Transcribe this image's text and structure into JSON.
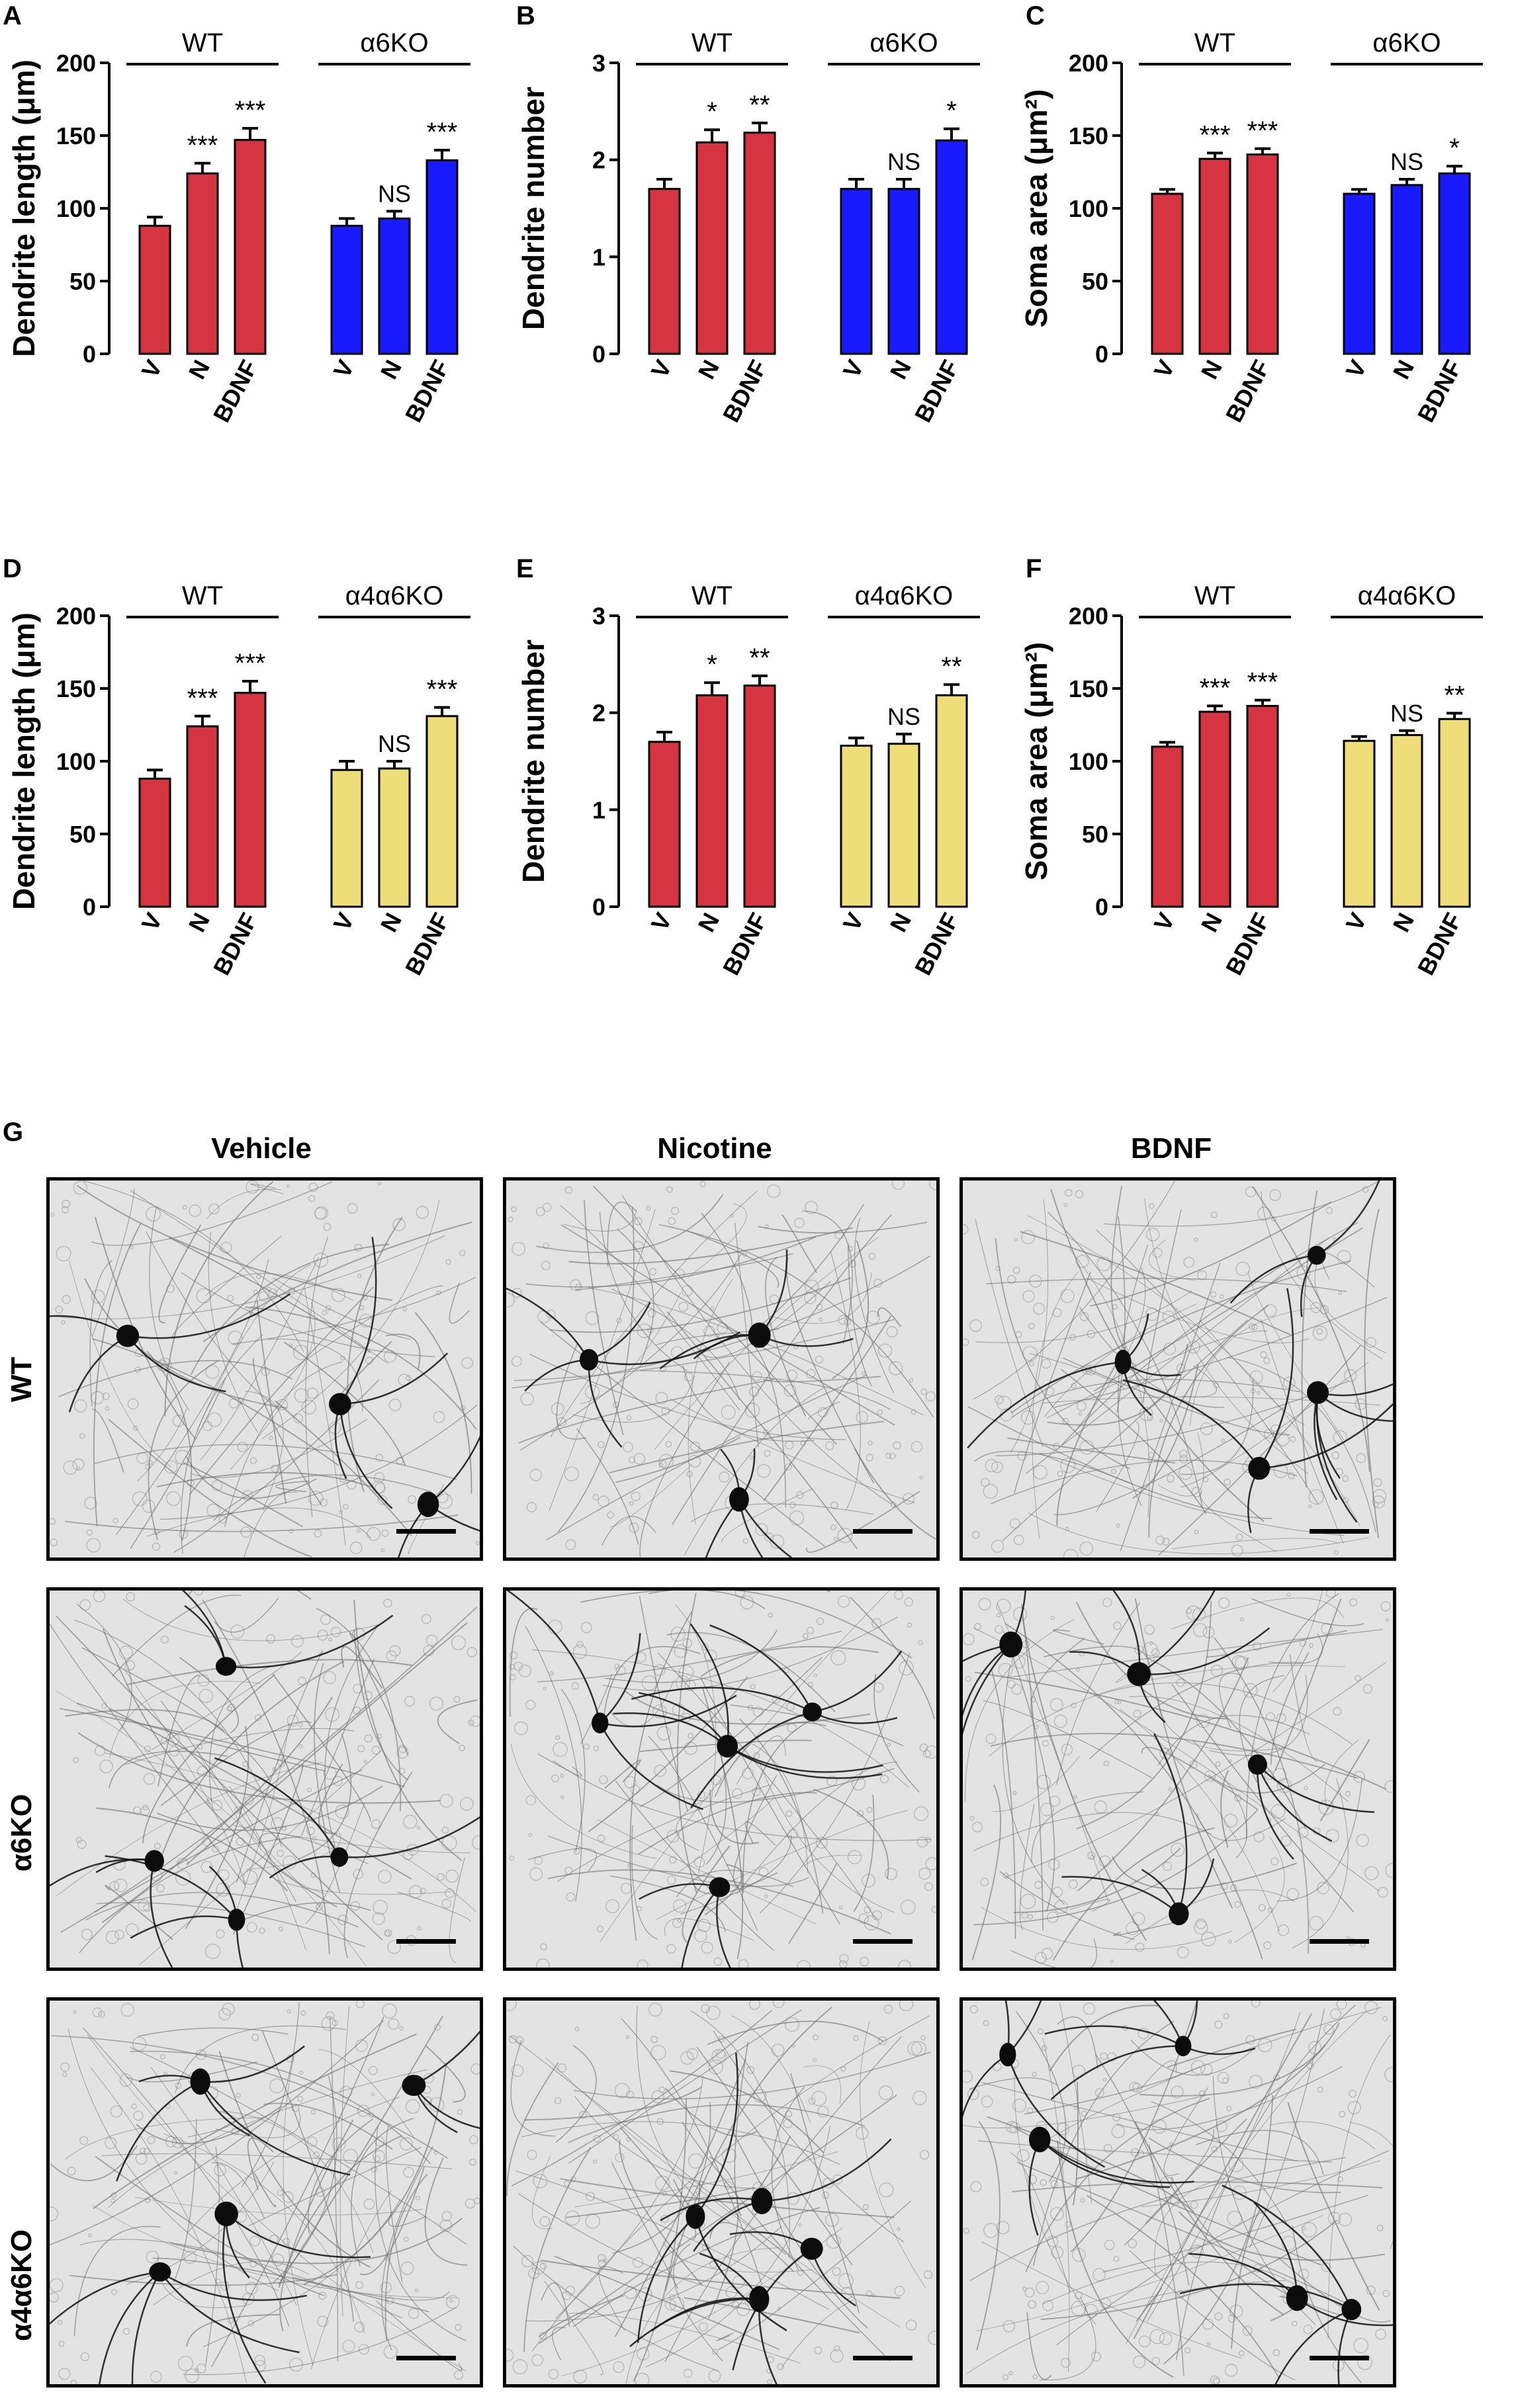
{
  "colors": {
    "wt": "#d63440",
    "alpha6ko": "#1a1aff",
    "alpha4alpha6ko": "#efdd7a"
  },
  "panels": {
    "A": "A",
    "B": "B",
    "C": "C",
    "D": "D",
    "E": "E",
    "F": "F",
    "G": "G"
  },
  "g": {
    "columns": [
      "Vehicle",
      "Nicotine",
      "BDNF"
    ],
    "rows": [
      "WT",
      "α6KO",
      "α4α6KO"
    ]
  },
  "chart_data": [
    {
      "id": "A",
      "type": "bar",
      "ylabel": "Dendrite length (μm)",
      "ylim": [
        0,
        200
      ],
      "yticks": [
        0,
        50,
        100,
        150,
        200
      ],
      "groups": [
        {
          "name": "WT",
          "color": "wt",
          "categories": [
            "V",
            "N",
            "BDNF"
          ],
          "values": [
            88,
            124,
            147
          ],
          "errors": [
            6,
            7,
            8
          ],
          "significance": [
            "",
            "***",
            "***"
          ]
        },
        {
          "name": "α6KO",
          "color": "alpha6ko",
          "categories": [
            "V",
            "N",
            "BDNF"
          ],
          "values": [
            88,
            93,
            133
          ],
          "errors": [
            5,
            5,
            7
          ],
          "significance": [
            "",
            "NS",
            "***"
          ]
        }
      ]
    },
    {
      "id": "B",
      "type": "bar",
      "ylabel": "Dendrite number",
      "ylim": [
        0,
        3
      ],
      "yticks": [
        0,
        1,
        2,
        3
      ],
      "groups": [
        {
          "name": "WT",
          "color": "wt",
          "categories": [
            "V",
            "N",
            "BDNF"
          ],
          "values": [
            1.7,
            2.18,
            2.28
          ],
          "errors": [
            0.1,
            0.13,
            0.1
          ],
          "significance": [
            "",
            "*",
            "**"
          ]
        },
        {
          "name": "α6KO",
          "color": "alpha6ko",
          "categories": [
            "V",
            "N",
            "BDNF"
          ],
          "values": [
            1.7,
            1.7,
            2.2
          ],
          "errors": [
            0.1,
            0.1,
            0.12
          ],
          "significance": [
            "",
            "NS",
            "*"
          ]
        }
      ]
    },
    {
      "id": "C",
      "type": "bar",
      "ylabel": "Soma area (μm²)",
      "ylim": [
        0,
        200
      ],
      "yticks": [
        0,
        50,
        100,
        150,
        200
      ],
      "groups": [
        {
          "name": "WT",
          "color": "wt",
          "categories": [
            "V",
            "N",
            "BDNF"
          ],
          "values": [
            110,
            134,
            137
          ],
          "errors": [
            3,
            4,
            4
          ],
          "significance": [
            "",
            "***",
            "***"
          ]
        },
        {
          "name": "α6KO",
          "color": "alpha6ko",
          "categories": [
            "V",
            "N",
            "BDNF"
          ],
          "values": [
            110,
            116,
            124
          ],
          "errors": [
            3,
            4,
            5
          ],
          "significance": [
            "",
            "NS",
            "*"
          ]
        }
      ]
    },
    {
      "id": "D",
      "type": "bar",
      "ylabel": "Dendrite length (μm)",
      "ylim": [
        0,
        200
      ],
      "yticks": [
        0,
        50,
        100,
        150,
        200
      ],
      "groups": [
        {
          "name": "WT",
          "color": "wt",
          "categories": [
            "V",
            "N",
            "BDNF"
          ],
          "values": [
            88,
            124,
            147
          ],
          "errors": [
            6,
            7,
            8
          ],
          "significance": [
            "",
            "***",
            "***"
          ]
        },
        {
          "name": "α4α6KO",
          "color": "alpha4alpha6ko",
          "categories": [
            "V",
            "N",
            "BDNF"
          ],
          "values": [
            94,
            95,
            131
          ],
          "errors": [
            6,
            5,
            6
          ],
          "significance": [
            "",
            "NS",
            "***"
          ]
        }
      ]
    },
    {
      "id": "E",
      "type": "bar",
      "ylabel": "Dendrite number",
      "ylim": [
        0,
        3
      ],
      "yticks": [
        0,
        1,
        2,
        3
      ],
      "groups": [
        {
          "name": "WT",
          "color": "wt",
          "categories": [
            "V",
            "N",
            "BDNF"
          ],
          "values": [
            1.7,
            2.18,
            2.28
          ],
          "errors": [
            0.1,
            0.13,
            0.1
          ],
          "significance": [
            "",
            "*",
            "**"
          ]
        },
        {
          "name": "α4α6KO",
          "color": "alpha4alpha6ko",
          "categories": [
            "V",
            "N",
            "BDNF"
          ],
          "values": [
            1.66,
            1.68,
            2.18
          ],
          "errors": [
            0.08,
            0.1,
            0.11
          ],
          "significance": [
            "",
            "NS",
            "**"
          ]
        }
      ]
    },
    {
      "id": "F",
      "type": "bar",
      "ylabel": "Soma area (μm²)",
      "ylim": [
        0,
        200
      ],
      "yticks": [
        0,
        50,
        100,
        150,
        200
      ],
      "groups": [
        {
          "name": "WT",
          "color": "wt",
          "categories": [
            "V",
            "N",
            "BDNF"
          ],
          "values": [
            110,
            134,
            138
          ],
          "errors": [
            3,
            4,
            4
          ],
          "significance": [
            "",
            "***",
            "***"
          ]
        },
        {
          "name": "α4α6KO",
          "color": "alpha4alpha6ko",
          "categories": [
            "V",
            "N",
            "BDNF"
          ],
          "values": [
            114,
            118,
            129
          ],
          "errors": [
            3,
            3,
            4
          ],
          "significance": [
            "",
            "NS",
            "**"
          ]
        }
      ]
    }
  ]
}
